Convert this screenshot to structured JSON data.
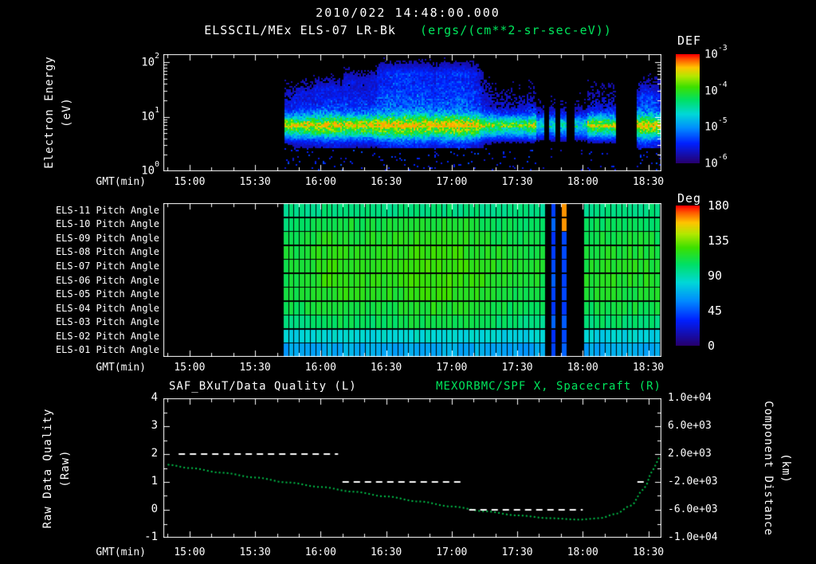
{
  "header": {
    "title": "2010/022 14:48:00.000",
    "instrument": "ELSSCIL/MEx ELS-07 LR-Bk",
    "units": "(ergs/(cm**2-sr-sec-eV))"
  },
  "colors": {
    "background": "#000000",
    "foreground": "#ffffff",
    "accent_green": "#00e65c",
    "curve_green": "#00c24a",
    "colormap": [
      [
        0,
        "#26006e"
      ],
      [
        0.18,
        "#0020ff"
      ],
      [
        0.32,
        "#008cff"
      ],
      [
        0.45,
        "#00d8d8"
      ],
      [
        0.58,
        "#00e065"
      ],
      [
        0.7,
        "#3ce000"
      ],
      [
        0.8,
        "#b4e800"
      ],
      [
        0.88,
        "#ffc400"
      ],
      [
        0.95,
        "#ff5c00"
      ],
      [
        1,
        "#ff0000"
      ]
    ]
  },
  "time_axis": {
    "label": "GMT(min)",
    "start_minute": 888,
    "end_minute": 1116,
    "minor_step": 10,
    "major_ticks": [
      {
        "minute": 900,
        "label": "15:00"
      },
      {
        "minute": 930,
        "label": "15:30"
      },
      {
        "minute": 960,
        "label": "16:00"
      },
      {
        "minute": 990,
        "label": "16:30"
      },
      {
        "minute": 1020,
        "label": "17:00"
      },
      {
        "minute": 1050,
        "label": "17:30"
      },
      {
        "minute": 1080,
        "label": "18:00"
      },
      {
        "minute": 1110,
        "label": "18:30"
      }
    ]
  },
  "chart_data": [
    {
      "id": "electron-energy-spectrogram",
      "type": "heatmap",
      "ylabel_line1": "Electron Energy",
      "ylabel_line2": "(eV)",
      "yscale": "log",
      "ylim": [
        1,
        140
      ],
      "yticks": [
        {
          "base": "10",
          "exp": "2"
        },
        {
          "base": "10",
          "exp": "1"
        },
        {
          "base": "10",
          "exp": "0"
        }
      ],
      "colorbar": {
        "label": "DEF",
        "scale": "log",
        "range_exp": [
          -6,
          -3
        ],
        "ticks": [
          {
            "base": "10",
            "exp": "-3"
          },
          {
            "base": "10",
            "exp": "-4"
          },
          {
            "base": "10",
            "exp": "-5"
          },
          {
            "base": "10",
            "exp": "-6"
          }
        ]
      },
      "data_start_minute": 943,
      "gaps": [
        [
          1062,
          1064
        ],
        [
          1067,
          1069
        ],
        [
          1072,
          1076
        ],
        [
          1095,
          1104
        ]
      ],
      "band": {
        "center_ev": 6.5,
        "sigma_log": 0.14,
        "amp": 0.62
      },
      "halo": {
        "amp": 0.34,
        "falloff": 0.55
      },
      "enhancements": [
        {
          "t": 955,
          "w": 8,
          "amp": 0.08,
          "emax": 25
        },
        {
          "t": 968,
          "w": 6,
          "amp": 0.1,
          "emax": 30
        },
        {
          "t": 990,
          "w": 10,
          "amp": 0.14,
          "emax": 45
        },
        {
          "t": 1010,
          "w": 12,
          "amp": 0.16,
          "emax": 60
        },
        {
          "t": 1026,
          "w": 7,
          "amp": 0.12,
          "emax": 40
        },
        {
          "t": 1109,
          "w": 5,
          "amp": 0.17,
          "emax": 22
        }
      ],
      "suppressions": [
        {
          "t0": 1033,
          "t1": 1055,
          "factor": 0.85
        },
        {
          "t0": 1058,
          "t1": 1082,
          "factor": 0.6
        }
      ]
    },
    {
      "id": "pitch-angle-panel",
      "type": "heatmap",
      "rows": [
        "ELS-11 Pitch Angle",
        "ELS-10 Pitch Angle",
        "ELS-09 Pitch Angle",
        "ELS-08 Pitch Angle",
        "ELS-07 Pitch Angle",
        "ELS-06 Pitch Angle",
        "ELS-05 Pitch Angle",
        "ELS-04 Pitch Angle",
        "ELS-03 Pitch Angle",
        "ELS-02 Pitch Angle",
        "ELS-01 Pitch Angle"
      ],
      "colorbar": {
        "label": "Deg",
        "min": 0,
        "max": 180,
        "ticks": [
          "180",
          "135",
          "90",
          "45",
          "0"
        ]
      },
      "data_start_minute": 943,
      "cell_minutes": 2.5,
      "base_angles_top_to_bottom": [
        96,
        102,
        106,
        109,
        111,
        111,
        108,
        104,
        97,
        78,
        64
      ],
      "noise_deg": 5,
      "modulations": [
        {
          "t": 965,
          "w": 12,
          "amp": 10
        },
        {
          "t": 1012,
          "w": 22,
          "amp": 14
        },
        {
          "t": 1098,
          "w": 16,
          "amp": 7
        }
      ],
      "gaps": [
        [
          1062,
          1063.5
        ],
        [
          1067,
          1068.5
        ],
        [
          1073,
          1080
        ]
      ],
      "low_angle_cols": [
        [
          1064,
          1066.5
        ],
        [
          1069,
          1072.5
        ]
      ],
      "high_angle_cells": {
        "t0": 1069,
        "t1": 1072.5,
        "top_rows": 2,
        "angle": 168
      }
    },
    {
      "id": "quality-and-distance",
      "type": "line",
      "title_left": "SAF_BXuT/Data Quality (L)",
      "title_right": "MEXORBMC/SPF X, Spacecraft (R)",
      "left_axis": {
        "label_line1": "Raw Data Quality",
        "label_line2": "(Raw)",
        "min": -1,
        "max": 4,
        "ticks": [
          "4",
          "3",
          "2",
          "1",
          "0",
          "-1"
        ]
      },
      "right_axis": {
        "label_line1": "Component Distance",
        "label_line2": "(km)",
        "min": -10000,
        "max": 10000,
        "ticks": [
          "1.0e+04",
          "6.0e+03",
          "2.0e+03",
          "-2.0e+03",
          "-6.0e+03",
          "-1.0e+04"
        ]
      },
      "series": [
        {
          "name": "SAF_BXuT/Data Quality",
          "axis": "left",
          "style": "dashed",
          "color": "#ffffff"
        },
        {
          "name": "MEXORBMC/SPF X Spacecraft",
          "axis": "right",
          "style": "dotted",
          "color": "#00c24a"
        }
      ],
      "quality_segments": [
        {
          "t0": 895,
          "t1": 968,
          "value": 2
        },
        {
          "t0": 970,
          "t1": 1026,
          "value": 1
        },
        {
          "t0": 1028,
          "t1": 1080,
          "value": 0
        },
        {
          "t0": 1105,
          "t1": 1110,
          "value": 1
        }
      ],
      "distance_km": [
        [
          890,
          480
        ],
        [
          900,
          0
        ],
        [
          915,
          -680
        ],
        [
          930,
          -1360
        ],
        [
          945,
          -2080
        ],
        [
          960,
          -2720
        ],
        [
          975,
          -3400
        ],
        [
          990,
          -4080
        ],
        [
          1005,
          -4800
        ],
        [
          1020,
          -5520
        ],
        [
          1035,
          -6200
        ],
        [
          1050,
          -6800
        ],
        [
          1065,
          -7200
        ],
        [
          1078,
          -7400
        ],
        [
          1088,
          -7200
        ],
        [
          1095,
          -6600
        ],
        [
          1102,
          -5400
        ],
        [
          1108,
          -3000
        ],
        [
          1112,
          -400
        ],
        [
          1115,
          1520
        ]
      ]
    }
  ],
  "render": {
    "seed": 11
  }
}
